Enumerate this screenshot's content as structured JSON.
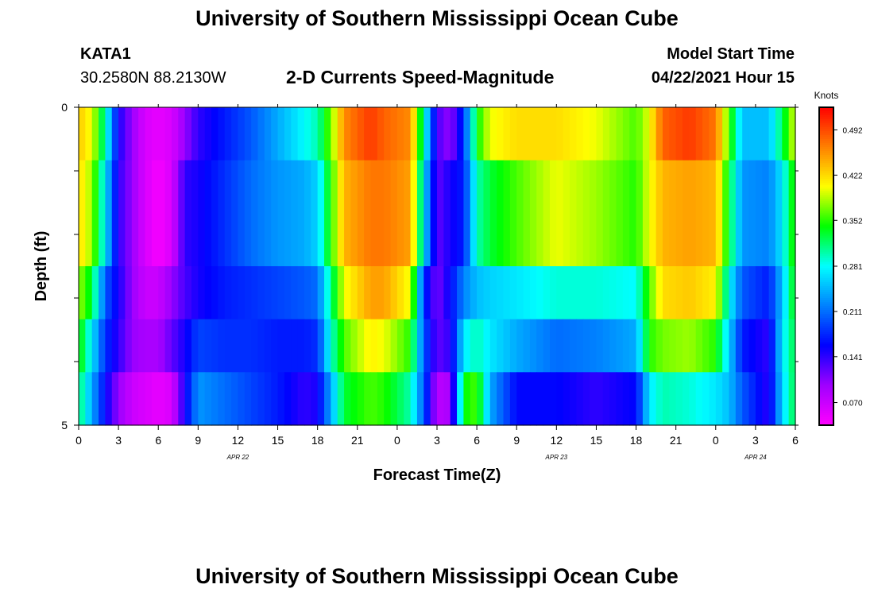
{
  "header": {
    "title": "University of Southern Mississippi Ocean Cube",
    "station": "KATA1",
    "coords": "30.2580N  88.2130W",
    "plot_title": "2-D Currents Speed-Magnitude",
    "model_label": "Model Start Time",
    "model_time": "04/22/2021 Hour 15"
  },
  "footer": {
    "title": "University of Southern Mississippi Ocean Cube"
  },
  "chart_data": {
    "type": "heatmap",
    "xlabel": "Forecast Time(Z)",
    "ylabel": "Depth (ft)",
    "ylim": [
      0,
      5
    ],
    "y_tick_labels": [
      "0",
      "5"
    ],
    "x_tick_labels": [
      "0",
      "3",
      "6",
      "9",
      "12",
      "15",
      "18",
      "21",
      "0",
      "3",
      "6",
      "9",
      "12",
      "15",
      "18",
      "21",
      "0",
      "3",
      "6"
    ],
    "date_labels": [
      {
        "label": "APR  22",
        "hour": 12
      },
      {
        "label": "APR  23",
        "hour": 36
      },
      {
        "label": "APR  24",
        "hour": 51
      }
    ],
    "x_range_hours": [
      0,
      54
    ],
    "colorbar": {
      "unit": "Knots",
      "ticks": [
        "0.070",
        "0.141",
        "0.211",
        "0.281",
        "0.352",
        "0.422",
        "0.492"
      ],
      "tick_values": [
        0.07,
        0.141,
        0.211,
        0.281,
        0.352,
        0.422,
        0.492
      ],
      "range": [
        0.035,
        0.527
      ],
      "colors": [
        "#ff00ff",
        "#a000ff",
        "#0000ff",
        "#0080ff",
        "#00ffff",
        "#00ff00",
        "#ffff00",
        "#ff8000",
        "#ff0000"
      ]
    },
    "layers": [
      "0-0.83 ft",
      "0.83-2.5 ft",
      "2.5-3.33 ft",
      "3.33-4.17 ft",
      "4.17-5 ft"
    ],
    "layer_rows": [
      1,
      2,
      1,
      1,
      1
    ],
    "keyframes": [
      {
        "hour": 0,
        "values": [
          0.43,
          0.42,
          0.38,
          0.35,
          0.32
        ]
      },
      {
        "hour": 1,
        "values": [
          0.4,
          0.38,
          0.33,
          0.27,
          0.24
        ]
      },
      {
        "hour": 2,
        "values": [
          0.3,
          0.27,
          0.2,
          0.18,
          0.16
        ]
      },
      {
        "hour": 3,
        "values": [
          0.15,
          0.14,
          0.15,
          0.14,
          0.1
        ]
      },
      {
        "hour": 4,
        "values": [
          0.1,
          0.1,
          0.1,
          0.1,
          0.07
        ]
      },
      {
        "hour": 5,
        "values": [
          0.06,
          0.06,
          0.07,
          0.09,
          0.06
        ]
      },
      {
        "hour": 6,
        "values": [
          0.05,
          0.04,
          0.07,
          0.09,
          0.05
        ]
      },
      {
        "hour": 7,
        "values": [
          0.06,
          0.06,
          0.1,
          0.12,
          0.06
        ]
      },
      {
        "hour": 8,
        "values": [
          0.1,
          0.14,
          0.13,
          0.15,
          0.15
        ]
      },
      {
        "hour": 9,
        "values": [
          0.14,
          0.15,
          0.15,
          0.19,
          0.23
        ]
      },
      {
        "hour": 11,
        "values": [
          0.17,
          0.18,
          0.17,
          0.18,
          0.21
        ]
      },
      {
        "hour": 13,
        "values": [
          0.2,
          0.21,
          0.18,
          0.18,
          0.19
        ]
      },
      {
        "hour": 15,
        "values": [
          0.24,
          0.23,
          0.19,
          0.17,
          0.17
        ]
      },
      {
        "hour": 17,
        "values": [
          0.28,
          0.24,
          0.2,
          0.17,
          0.14
        ]
      },
      {
        "hour": 18,
        "values": [
          0.3,
          0.26,
          0.21,
          0.18,
          0.15
        ]
      },
      {
        "hour": 19,
        "values": [
          0.37,
          0.35,
          0.31,
          0.29,
          0.24
        ]
      },
      {
        "hour": 20,
        "values": [
          0.46,
          0.44,
          0.4,
          0.36,
          0.33
        ]
      },
      {
        "hour": 22,
        "values": [
          0.5,
          0.47,
          0.45,
          0.41,
          0.36
        ]
      },
      {
        "hour": 23,
        "values": [
          0.48,
          0.47,
          0.45,
          0.4,
          0.35
        ]
      },
      {
        "hour": 25,
        "values": [
          0.46,
          0.45,
          0.4,
          0.35,
          0.3
        ]
      },
      {
        "hour": 26,
        "values": [
          0.3,
          0.27,
          0.18,
          0.2,
          0.2
        ]
      },
      {
        "hour": 27,
        "values": [
          0.13,
          0.12,
          0.11,
          0.12,
          0.08
        ]
      },
      {
        "hour": 28,
        "values": [
          0.1,
          0.15,
          0.16,
          0.14,
          0.09
        ]
      },
      {
        "hour": 29,
        "values": [
          0.18,
          0.17,
          0.22,
          0.27,
          0.34
        ]
      },
      {
        "hour": 30,
        "values": [
          0.34,
          0.3,
          0.25,
          0.3,
          0.36
        ]
      },
      {
        "hour": 31,
        "values": [
          0.4,
          0.33,
          0.26,
          0.27,
          0.24
        ]
      },
      {
        "hour": 33,
        "values": [
          0.42,
          0.36,
          0.27,
          0.24,
          0.16
        ]
      },
      {
        "hour": 36,
        "values": [
          0.42,
          0.4,
          0.29,
          0.21,
          0.16
        ]
      },
      {
        "hour": 39,
        "values": [
          0.4,
          0.38,
          0.29,
          0.22,
          0.14
        ]
      },
      {
        "hour": 42,
        "values": [
          0.36,
          0.35,
          0.28,
          0.24,
          0.16
        ]
      },
      {
        "hour": 43,
        "values": [
          0.4,
          0.4,
          0.36,
          0.35,
          0.27
        ]
      },
      {
        "hour": 44,
        "values": [
          0.48,
          0.44,
          0.42,
          0.37,
          0.3
        ]
      },
      {
        "hour": 46,
        "values": [
          0.5,
          0.45,
          0.43,
          0.38,
          0.29
        ]
      },
      {
        "hour": 48,
        "values": [
          0.47,
          0.44,
          0.41,
          0.35,
          0.27
        ]
      },
      {
        "hour": 49,
        "values": [
          0.36,
          0.33,
          0.28,
          0.26,
          0.25
        ]
      },
      {
        "hour": 50,
        "values": [
          0.25,
          0.23,
          0.2,
          0.17,
          0.2
        ]
      },
      {
        "hour": 52,
        "values": [
          0.25,
          0.22,
          0.17,
          0.14,
          0.14
        ]
      },
      {
        "hour": 53,
        "values": [
          0.32,
          0.27,
          0.25,
          0.27,
          0.26
        ]
      },
      {
        "hour": 54,
        "values": [
          0.4,
          0.36,
          0.35,
          0.33,
          0.33
        ]
      }
    ]
  }
}
